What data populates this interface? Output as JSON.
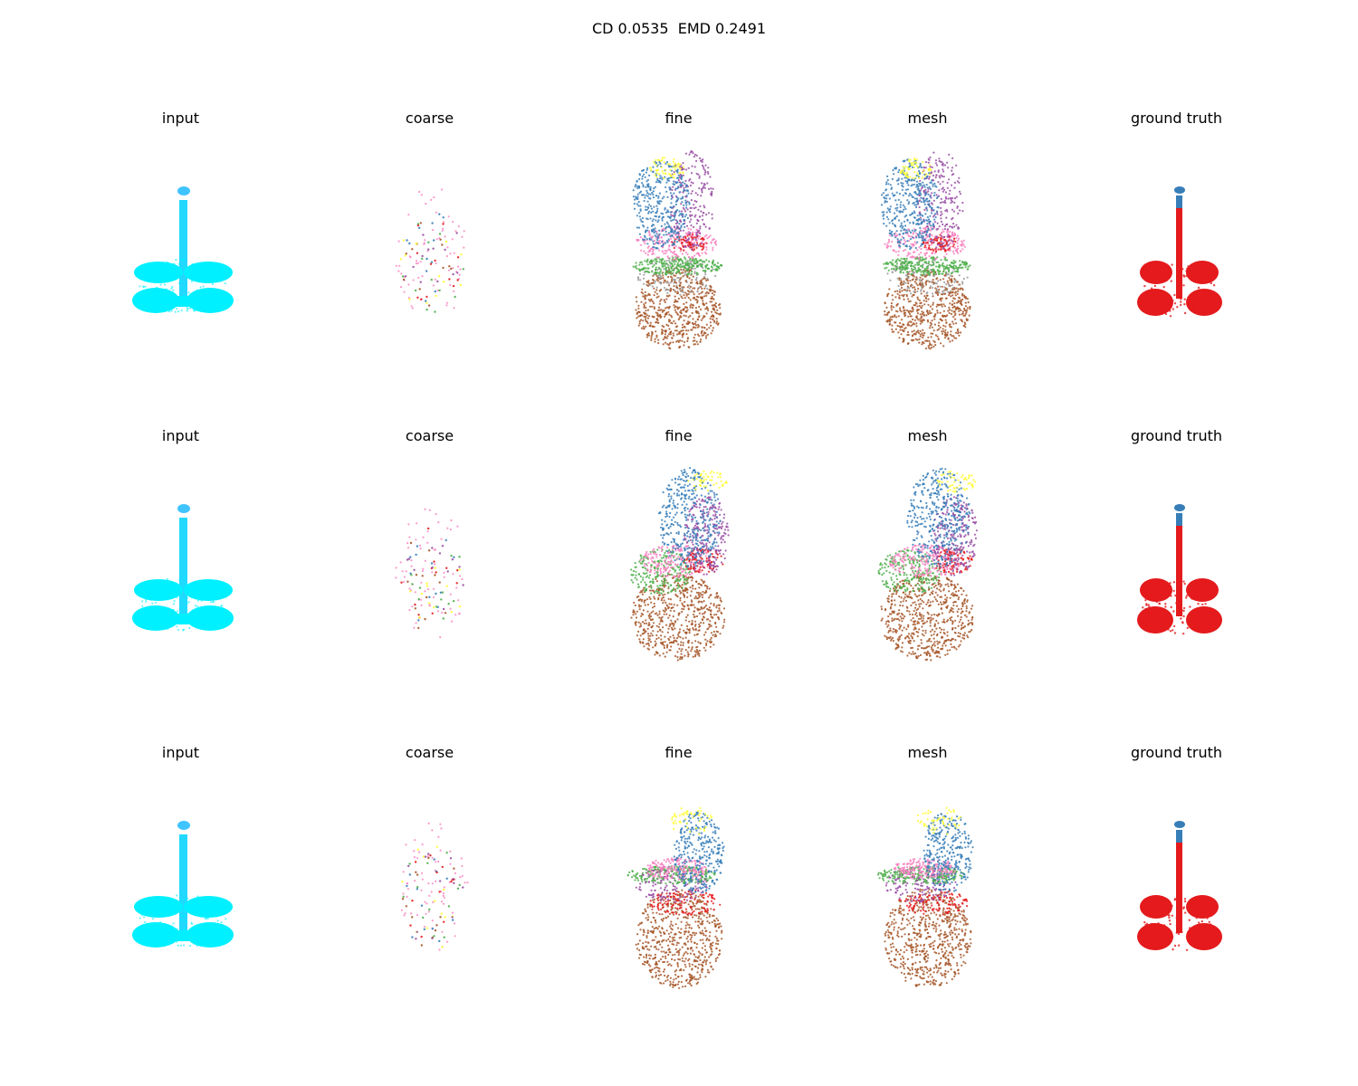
{
  "figure": {
    "title": "CD 0.0535  EMD 0.2491"
  },
  "colors": {
    "input": [
      "#00f0ff",
      "#22d8ff",
      "#40c4ff"
    ],
    "coarse": [
      "#f781bf",
      "#377eb8",
      "#e41a1c",
      "#4daf4a",
      "#a65628",
      "#ffff33",
      "#984ea3"
    ],
    "fine_classes": {
      "blue": "#377eb8",
      "yellow": "#ffff33",
      "purple": "#984ea3",
      "pink": "#f781bf",
      "red": "#e41a1c",
      "green": "#4daf4a",
      "brown": "#a65628",
      "grey": "#999999"
    },
    "ground_truth": {
      "body": "#e41a1c",
      "top": "#377eb8"
    }
  },
  "rows": [
    {
      "panels": [
        {
          "title": "input",
          "kind": "input",
          "icon": "point-cloud-input"
        },
        {
          "title": "coarse",
          "kind": "coarse",
          "icon": "point-cloud-coarse"
        },
        {
          "title": "fine",
          "kind": "fine",
          "icon": "point-cloud-fine"
        },
        {
          "title": "mesh",
          "kind": "fine",
          "icon": "point-cloud-mesh"
        },
        {
          "title": "ground truth",
          "kind": "gt",
          "icon": "point-cloud-ground-truth"
        }
      ]
    },
    {
      "panels": [
        {
          "title": "input",
          "kind": "input",
          "icon": "point-cloud-input"
        },
        {
          "title": "coarse",
          "kind": "coarse",
          "icon": "point-cloud-coarse"
        },
        {
          "title": "fine",
          "kind": "fine2",
          "icon": "point-cloud-fine"
        },
        {
          "title": "mesh",
          "kind": "fine2",
          "icon": "point-cloud-mesh"
        },
        {
          "title": "ground truth",
          "kind": "gt",
          "icon": "point-cloud-ground-truth"
        }
      ]
    },
    {
      "panels": [
        {
          "title": "input",
          "kind": "input",
          "icon": "point-cloud-input"
        },
        {
          "title": "coarse",
          "kind": "coarse",
          "icon": "point-cloud-coarse"
        },
        {
          "title": "fine",
          "kind": "fine3",
          "icon": "point-cloud-fine"
        },
        {
          "title": "mesh",
          "kind": "fine3",
          "icon": "point-cloud-mesh"
        },
        {
          "title": "ground truth",
          "kind": "gt",
          "icon": "point-cloud-ground-truth"
        }
      ]
    }
  ]
}
